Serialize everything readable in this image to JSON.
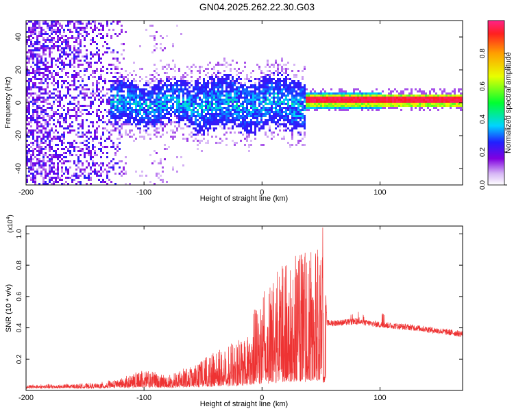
{
  "title": "GN04.2025.262.22.30.G03",
  "chart_data": [
    {
      "type": "heatmap",
      "xlabel": "Height of straight line (km)",
      "ylabel": "Frequency (Hz)",
      "xlim": [
        -200,
        170
      ],
      "ylim": [
        -50,
        50
      ],
      "xticks": [
        -200,
        -100,
        0,
        100
      ],
      "xtick_labels": [
        "-200",
        "-100",
        "0",
        "100"
      ],
      "yticks": [
        40,
        20,
        0,
        -20,
        -40
      ],
      "ytick_labels": [
        "40",
        "20",
        "0",
        "-20",
        "-40"
      ],
      "colorbar": {
        "label": "Normalized spectral amplitude",
        "range": [
          0,
          1
        ],
        "ticks": [
          0.0,
          0.2,
          0.4,
          0.6,
          0.8
        ],
        "tick_labels": [
          "0.0",
          "0.2",
          "0.4",
          "0.6",
          "0.8"
        ],
        "colormap": "rainbow (white-violet-blue-cyan-green-yellow-red)"
      },
      "features": [
        {
          "name": "noise-region",
          "x_range": [
            -200,
            -120
          ],
          "freq_spread": 50,
          "amplitude": 0.2
        },
        {
          "name": "turbulent-band",
          "x_range": [
            -130,
            35
          ],
          "freq_spread": 10,
          "amplitude": 0.35
        },
        {
          "name": "coherent-line",
          "x_range": [
            38,
            170
          ],
          "freq_center": 2,
          "amplitude": 0.95
        }
      ]
    },
    {
      "type": "line",
      "xlabel": "Height of straight line (km)",
      "ylabel": "SNR (10 * v/v)",
      "y_scale_label": "(x10",
      "y_scale_exp": "4",
      "xlim": [
        -200,
        170
      ],
      "ylim": [
        0,
        1.05
      ],
      "xticks": [
        -200,
        -100,
        0,
        100
      ],
      "xtick_labels": [
        "-200",
        "-100",
        "0",
        "100"
      ],
      "yticks": [
        0.2,
        0.4,
        0.6,
        0.8,
        1.0
      ],
      "ytick_labels": [
        "0.2",
        "0.4",
        "0.6",
        "0.8",
        "1.0"
      ],
      "color": "#ee3333",
      "envelope": [
        {
          "x": -200,
          "y": 0.02
        },
        {
          "x": -140,
          "y": 0.03
        },
        {
          "x": -120,
          "y": 0.06
        },
        {
          "x": -100,
          "y": 0.12
        },
        {
          "x": -80,
          "y": 0.08
        },
        {
          "x": -60,
          "y": 0.14
        },
        {
          "x": -40,
          "y": 0.24
        },
        {
          "x": -20,
          "y": 0.3
        },
        {
          "x": -10,
          "y": 0.45
        },
        {
          "x": 0,
          "y": 0.6
        },
        {
          "x": 10,
          "y": 0.7
        },
        {
          "x": 20,
          "y": 0.8
        },
        {
          "x": 30,
          "y": 0.87
        },
        {
          "x": 40,
          "y": 0.88
        },
        {
          "x": 50,
          "y": 0.9
        },
        {
          "x": 54,
          "y": 0.62
        },
        {
          "x": 55,
          "y": 0.43
        },
        {
          "x": 60,
          "y": 0.43
        },
        {
          "x": 80,
          "y": 0.44
        },
        {
          "x": 100,
          "y": 0.42
        },
        {
          "x": 130,
          "y": 0.4
        },
        {
          "x": 170,
          "y": 0.36
        }
      ]
    }
  ]
}
